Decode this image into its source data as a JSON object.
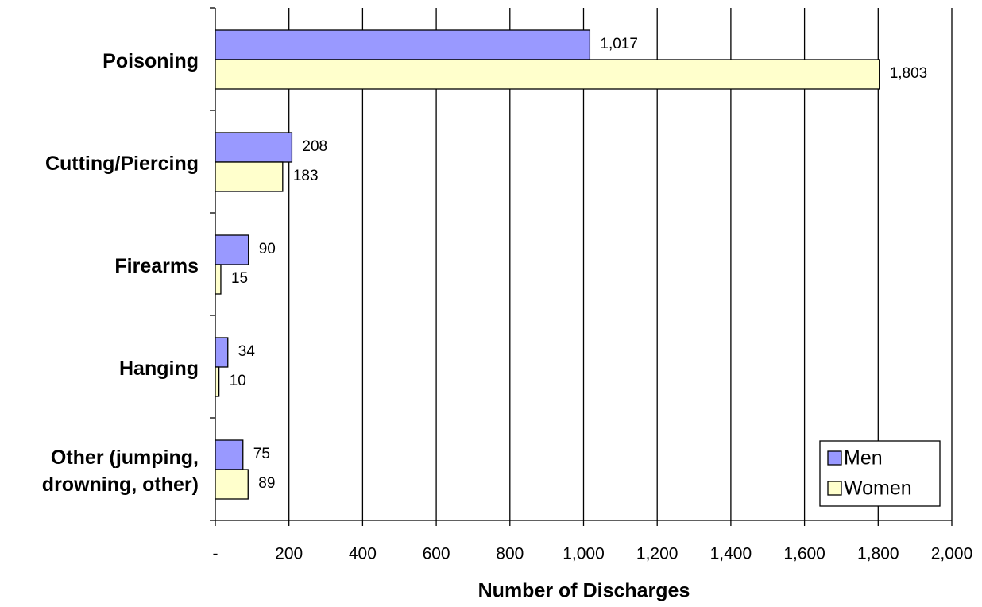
{
  "chart_data": {
    "type": "hbar",
    "x_label": "Number of Discharges",
    "categories": [
      "Poisoning",
      "Cutting/Piercing",
      "Firearms",
      "Hanging",
      "Other (jumping, drowning, other)"
    ],
    "series": [
      {
        "name": "Men",
        "color": "#9999ff",
        "values": [
          1017,
          208,
          90,
          34,
          75
        ],
        "value_labels": [
          "1,017",
          "208",
          "90",
          "34",
          "75"
        ]
      },
      {
        "name": "Women",
        "color": "#ffffcc",
        "values": [
          1803,
          183,
          15,
          10,
          89
        ],
        "value_labels": [
          "1,803",
          "183",
          "15",
          "10",
          "89"
        ]
      }
    ],
    "xlim": [
      0,
      2000
    ],
    "xticks": [
      {
        "value": 0,
        "label": "-"
      },
      200,
      400,
      600,
      800,
      {
        "value": 1000,
        "label": "1,000"
      },
      {
        "value": 1200,
        "label": "1,200"
      },
      {
        "value": 1400,
        "label": "1,400"
      },
      {
        "value": 1600,
        "label": "1,600"
      },
      {
        "value": 1800,
        "label": "1,800"
      },
      {
        "value": 2000,
        "label": "2,000"
      }
    ],
    "grid": true,
    "legend_position": "lower right"
  }
}
